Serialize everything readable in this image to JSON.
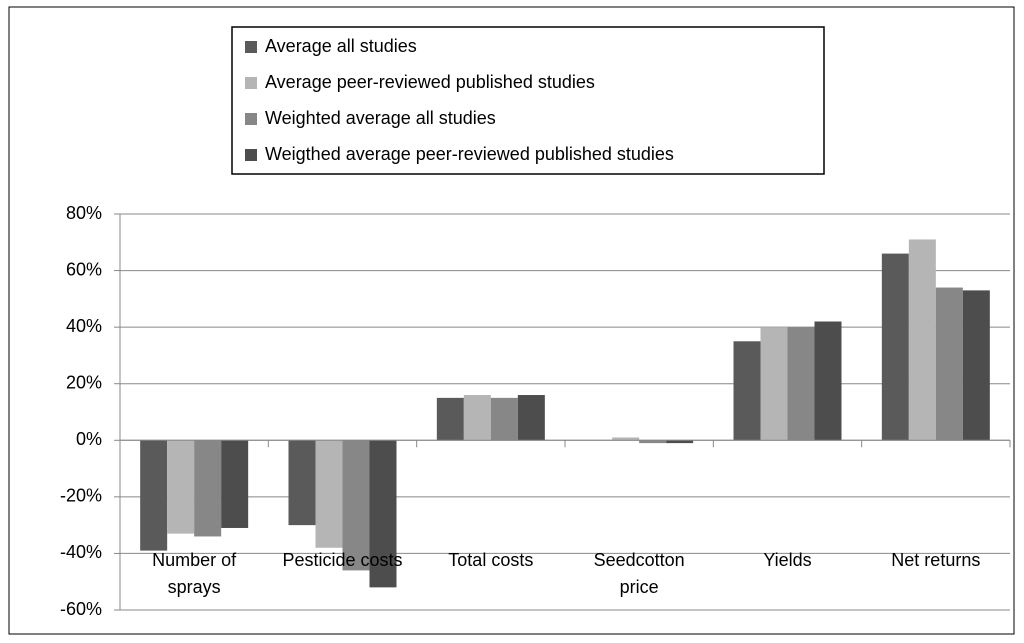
{
  "chart_data": {
    "type": "bar",
    "categories": [
      "Number of sprays",
      "Pesticide costs",
      "Total costs",
      "Seedcotton price",
      "Yields",
      "Net returns"
    ],
    "series": [
      {
        "name": "Average all studies",
        "color": "#5a5a5a",
        "values": [
          -39,
          -30,
          15,
          0,
          35,
          66
        ]
      },
      {
        "name": "Average peer-reviewed published studies",
        "color": "#b5b5b5",
        "values": [
          -33,
          -38,
          16,
          1,
          40,
          71
        ]
      },
      {
        "name": "Weighted average all studies",
        "color": "#878787",
        "values": [
          -34,
          -46,
          15,
          -1,
          40,
          54
        ]
      },
      {
        "name": "Weigthed average peer-reviewed published studies",
        "color": "#4d4d4d",
        "values": [
          -31,
          -52,
          16,
          -1,
          42,
          53
        ]
      }
    ],
    "ylim": [
      -60,
      80
    ],
    "yticks": [
      {
        "value": -60,
        "label": "-60%"
      },
      {
        "value": -40,
        "label": "-40%"
      },
      {
        "value": -20,
        "label": "-20%"
      },
      {
        "value": 0,
        "label": "0%"
      },
      {
        "value": 20,
        "label": "20%"
      },
      {
        "value": 40,
        "label": "40%"
      },
      {
        "value": 60,
        "label": "60%"
      },
      {
        "value": 80,
        "label": "80%"
      }
    ],
    "grid": true
  }
}
